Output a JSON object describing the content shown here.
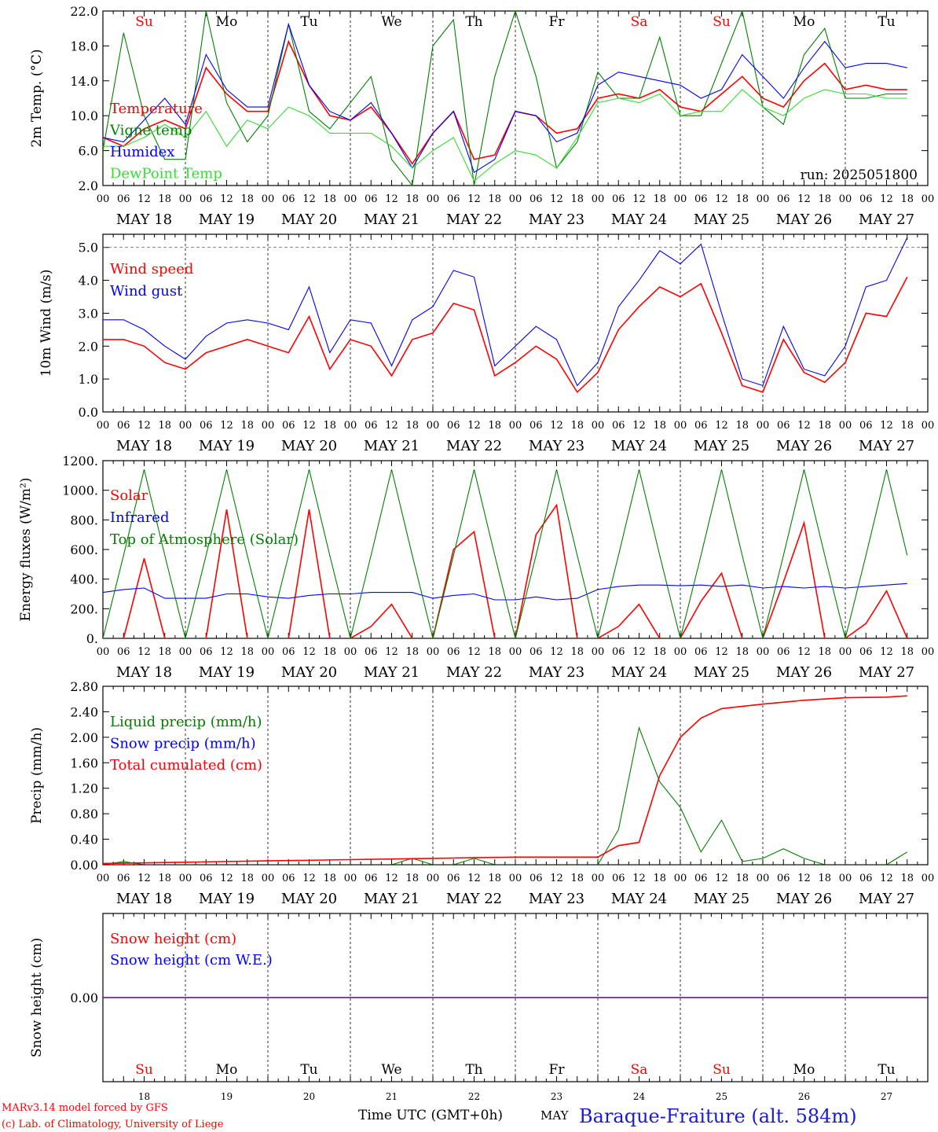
{
  "footer": {
    "model_line": "MARv3.14 model forced by GFS",
    "copyright_line": "(c) Lab. of Climatology, University of Liege",
    "time_axis_label": "Time UTC (GMT+0h)",
    "month_label": "MAY",
    "station_label": "Baraque-Fraiture (alt. 584m)"
  },
  "colors": {
    "red": "#ff0000",
    "green": "#008000",
    "blue": "#0000ff",
    "lightgreen": "#33dd33",
    "station": "#1a1ad6"
  },
  "day_names": [
    "Su",
    "Mo",
    "Tu",
    "We",
    "Th",
    "Fr",
    "Sa",
    "Su",
    "Mo",
    "Tu"
  ],
  "weekend_days": [
    0,
    6,
    7
  ],
  "day_numbers": [
    "18",
    "19",
    "20",
    "21",
    "22",
    "23",
    "24",
    "25",
    "26",
    "27"
  ],
  "date_labels": [
    "MAY 18",
    "MAY 19",
    "MAY 20",
    "MAY 21",
    "MAY 22",
    "MAY 23",
    "MAY 24",
    "MAY 25",
    "MAY 26",
    "MAY 27"
  ],
  "hour_labels": [
    "00",
    "06",
    "12",
    "18"
  ],
  "chart_data": [
    {
      "type": "line",
      "ylabel": "2m Temp. (°C)",
      "ylim": [
        2.0,
        22.0
      ],
      "yticks": [
        "2.0",
        "6.0",
        "10.0",
        "14.0",
        "18.0",
        "22.0"
      ],
      "annotation": "run: 2025051800",
      "x_unit": "hours since MAY 18 00 UTC",
      "series": [
        {
          "name": "Temperature",
          "color": "red",
          "x": [
            0,
            6,
            12,
            18,
            24,
            30,
            36,
            42,
            48,
            54,
            60,
            66,
            72,
            78,
            84,
            90,
            96,
            102,
            108,
            114,
            120,
            126,
            132,
            138,
            144,
            150,
            156,
            162,
            168,
            174,
            180,
            186,
            192,
            198,
            204,
            210,
            216,
            222,
            228,
            234
          ],
          "y": [
            7.5,
            6.5,
            8.5,
            9.5,
            8.5,
            15.5,
            12.5,
            10.5,
            10.5,
            18.5,
            13.5,
            10.0,
            9.5,
            11.0,
            8.0,
            4.5,
            8.0,
            10.5,
            5.0,
            5.5,
            10.5,
            10.0,
            8.0,
            8.5,
            12.0,
            12.5,
            12.0,
            13.0,
            11.0,
            10.5,
            12.5,
            14.5,
            12.0,
            11.0,
            14.0,
            16.0,
            13.0,
            13.5,
            13.0,
            13.0
          ]
        },
        {
          "name": "Vigne temp",
          "color": "green",
          "x": [
            0,
            6,
            12,
            18,
            24,
            30,
            36,
            42,
            48,
            54,
            60,
            66,
            72,
            78,
            84,
            90,
            96,
            102,
            108,
            114,
            120,
            126,
            132,
            138,
            144,
            150,
            156,
            162,
            168,
            174,
            180,
            186,
            192,
            198,
            204,
            210,
            216,
            222,
            228,
            234
          ],
          "y": [
            6.0,
            19.5,
            10.0,
            5.0,
            5.0,
            22.0,
            11.5,
            7.0,
            10.0,
            20.5,
            10.5,
            8.5,
            11.5,
            14.5,
            5.0,
            2.0,
            18.0,
            21.0,
            2.0,
            14.5,
            22.0,
            14.5,
            4.0,
            7.0,
            15.0,
            12.0,
            12.0,
            19.0,
            10.0,
            10.0,
            16.0,
            22.0,
            11.0,
            9.0,
            17.0,
            20.0,
            12.0,
            12.0,
            12.5,
            12.5
          ]
        },
        {
          "name": "Humidex",
          "color": "blue",
          "x": [
            0,
            6,
            12,
            18,
            24,
            30,
            36,
            42,
            48,
            54,
            60,
            66,
            72,
            78,
            84,
            90,
            96,
            102,
            108,
            114,
            120,
            126,
            132,
            138,
            144,
            150,
            156,
            162,
            168,
            174,
            180,
            186,
            192,
            198,
            204,
            210,
            216,
            222,
            228,
            234
          ],
          "y": [
            7.5,
            7.0,
            9.5,
            12.0,
            9.0,
            17.0,
            13.0,
            11.0,
            11.0,
            20.5,
            13.5,
            10.5,
            9.5,
            11.5,
            8.0,
            4.0,
            8.0,
            10.5,
            3.5,
            5.0,
            10.5,
            10.0,
            7.0,
            8.0,
            13.5,
            15.0,
            14.5,
            14.0,
            13.5,
            12.0,
            13.0,
            17.0,
            14.5,
            12.0,
            15.5,
            18.5,
            15.5,
            16.0,
            16.0,
            15.5
          ]
        },
        {
          "name": "DewPoint Temp",
          "color": "lightgreen",
          "x": [
            0,
            6,
            12,
            18,
            24,
            30,
            36,
            42,
            48,
            54,
            60,
            66,
            72,
            78,
            84,
            90,
            96,
            102,
            108,
            114,
            120,
            126,
            132,
            138,
            144,
            150,
            156,
            162,
            168,
            174,
            180,
            186,
            192,
            198,
            204,
            210,
            216,
            222,
            228,
            234
          ],
          "y": [
            6.5,
            6.5,
            7.5,
            9.0,
            7.5,
            10.5,
            6.5,
            9.5,
            8.5,
            11.0,
            10.0,
            8.0,
            8.0,
            8.0,
            6.5,
            4.0,
            6.0,
            7.5,
            2.5,
            4.5,
            6.0,
            5.5,
            4.0,
            7.5,
            11.5,
            12.0,
            11.5,
            12.5,
            10.0,
            10.5,
            10.5,
            13.0,
            11.0,
            10.0,
            12.0,
            13.0,
            12.5,
            12.5,
            12.0,
            12.0
          ]
        }
      ]
    },
    {
      "type": "line",
      "ylabel": "10m Wind (m/s)",
      "ylim": [
        0.0,
        5.4
      ],
      "yticks": [
        "0.0",
        "1.0",
        "2.0",
        "3.0",
        "4.0",
        "5.0"
      ],
      "reference_line": 5.0,
      "x_unit": "hours since MAY 18 00 UTC",
      "series": [
        {
          "name": "Wind speed",
          "color": "red",
          "x": [
            0,
            6,
            12,
            18,
            24,
            30,
            36,
            42,
            48,
            54,
            60,
            66,
            72,
            78,
            84,
            90,
            96,
            102,
            108,
            114,
            120,
            126,
            132,
            138,
            144,
            150,
            156,
            162,
            168,
            174,
            180,
            186,
            192,
            198,
            204,
            210,
            216,
            222,
            228,
            234
          ],
          "y": [
            2.2,
            2.2,
            2.0,
            1.5,
            1.3,
            1.8,
            2.0,
            2.2,
            2.0,
            1.8,
            2.9,
            1.3,
            2.2,
            2.0,
            1.1,
            2.2,
            2.4,
            3.3,
            3.1,
            1.1,
            1.5,
            2.0,
            1.6,
            0.6,
            1.2,
            2.5,
            3.2,
            3.8,
            3.5,
            3.9,
            2.4,
            0.8,
            0.6,
            2.2,
            1.2,
            0.9,
            1.5,
            3.0,
            2.9,
            4.1
          ]
        },
        {
          "name": "Wind gust",
          "color": "blue",
          "x": [
            0,
            6,
            12,
            18,
            24,
            30,
            36,
            42,
            48,
            54,
            60,
            66,
            72,
            78,
            84,
            90,
            96,
            102,
            108,
            114,
            120,
            126,
            132,
            138,
            144,
            150,
            156,
            162,
            168,
            174,
            180,
            186,
            192,
            198,
            204,
            210,
            216,
            222,
            228,
            234
          ],
          "y": [
            2.8,
            2.8,
            2.5,
            2.0,
            1.6,
            2.3,
            2.7,
            2.8,
            2.7,
            2.5,
            3.8,
            1.8,
            2.8,
            2.7,
            1.4,
            2.8,
            3.2,
            4.3,
            4.1,
            1.4,
            2.0,
            2.6,
            2.2,
            0.8,
            1.5,
            3.2,
            4.0,
            4.9,
            4.5,
            5.1,
            3.0,
            1.0,
            0.8,
            2.6,
            1.3,
            1.1,
            2.0,
            3.8,
            4.0,
            5.3
          ]
        }
      ]
    },
    {
      "type": "line",
      "ylabel": "Energy fluxes (W/m²)",
      "ylim": [
        0,
        1200
      ],
      "yticks": [
        "0.",
        "200.",
        "400.",
        "600.",
        "800.",
        "1000.",
        "1200."
      ],
      "x_unit": "hours since MAY 18 00 UTC",
      "series": [
        {
          "name": "Solar",
          "color": "red",
          "x": [
            0,
            6,
            12,
            18,
            24,
            30,
            36,
            42,
            48,
            54,
            60,
            66,
            72,
            78,
            84,
            90,
            96,
            102,
            108,
            114,
            120,
            126,
            132,
            138,
            144,
            150,
            156,
            162,
            168,
            174,
            180,
            186,
            192,
            198,
            204,
            210,
            216,
            222,
            228,
            234
          ],
          "y": [
            0,
            0,
            540,
            0,
            0,
            0,
            870,
            0,
            0,
            0,
            870,
            0,
            0,
            80,
            230,
            0,
            0,
            600,
            720,
            0,
            0,
            700,
            900,
            0,
            0,
            80,
            230,
            0,
            0,
            250,
            440,
            0,
            0,
            380,
            780,
            0,
            0,
            100,
            320,
            0
          ]
        },
        {
          "name": "Infrared",
          "color": "blue",
          "x": [
            0,
            6,
            12,
            18,
            24,
            30,
            36,
            42,
            48,
            54,
            60,
            66,
            72,
            78,
            84,
            90,
            96,
            102,
            108,
            114,
            120,
            126,
            132,
            138,
            144,
            150,
            156,
            162,
            168,
            174,
            180,
            186,
            192,
            198,
            204,
            210,
            216,
            222,
            228,
            234
          ],
          "y": [
            310,
            330,
            340,
            270,
            270,
            270,
            300,
            300,
            280,
            270,
            290,
            300,
            300,
            310,
            310,
            310,
            270,
            290,
            300,
            260,
            260,
            280,
            260,
            270,
            330,
            350,
            360,
            360,
            355,
            360,
            350,
            360,
            340,
            350,
            340,
            350,
            340,
            350,
            360,
            370
          ]
        },
        {
          "name": "Top of Atmosphere (Solar)",
          "color": "green",
          "x": [
            0,
            6,
            12,
            18,
            24,
            30,
            36,
            42,
            48,
            54,
            60,
            66,
            72,
            78,
            84,
            90,
            96,
            102,
            108,
            114,
            120,
            126,
            132,
            138,
            144,
            150,
            156,
            162,
            168,
            174,
            180,
            186,
            192,
            198,
            204,
            210,
            216,
            222,
            228,
            234
          ],
          "y": [
            0,
            560,
            1140,
            560,
            0,
            560,
            1140,
            560,
            0,
            560,
            1140,
            560,
            0,
            560,
            1140,
            560,
            0,
            560,
            1140,
            560,
            0,
            560,
            1140,
            560,
            0,
            560,
            1140,
            560,
            0,
            560,
            1140,
            560,
            0,
            560,
            1140,
            560,
            0,
            560,
            1140,
            560
          ]
        }
      ]
    },
    {
      "type": "line",
      "ylabel": "Precip (mm/h)",
      "ylim": [
        0.0,
        2.8
      ],
      "yticks": [
        "0.00",
        "0.40",
        "0.80",
        "1.20",
        "1.60",
        "2.00",
        "2.40",
        "2.80"
      ],
      "x_unit": "hours since MAY 18 00 UTC",
      "series": [
        {
          "name": "Liquid precip (mm/h)",
          "color": "green",
          "x": [
            0,
            6,
            12,
            18,
            24,
            30,
            36,
            42,
            48,
            54,
            60,
            66,
            72,
            78,
            84,
            90,
            96,
            102,
            108,
            114,
            120,
            126,
            132,
            138,
            144,
            150,
            156,
            162,
            168,
            174,
            180,
            186,
            192,
            198,
            204,
            210,
            216,
            222,
            228,
            234
          ],
          "y": [
            0,
            0.05,
            0,
            0,
            0,
            0,
            0,
            0,
            0,
            0,
            0,
            0,
            0,
            0,
            0,
            0.1,
            0,
            0,
            0.1,
            0,
            0,
            0,
            0,
            0,
            0,
            0.55,
            2.15,
            1.3,
            0.9,
            0.2,
            0.7,
            0.05,
            0.1,
            0.25,
            0.1,
            0,
            0,
            0,
            0,
            0.2
          ]
        },
        {
          "name": "Snow precip (mm/h)",
          "color": "blue",
          "x": [
            0,
            234
          ],
          "y": [
            0,
            0
          ]
        },
        {
          "name": "Total cumulated (cm)",
          "color": "red",
          "x": [
            0,
            24,
            48,
            72,
            96,
            120,
            138,
            144,
            150,
            156,
            162,
            168,
            174,
            180,
            192,
            204,
            216,
            228,
            234
          ],
          "y": [
            0.02,
            0.04,
            0.06,
            0.08,
            0.1,
            0.12,
            0.12,
            0.12,
            0.3,
            0.35,
            1.4,
            2.0,
            2.3,
            2.45,
            2.52,
            2.58,
            2.62,
            2.63,
            2.65
          ]
        }
      ]
    },
    {
      "type": "line",
      "ylabel": "Snow height (cm)",
      "ylim": [
        -1.0,
        1.0
      ],
      "yticks": [
        "0.00"
      ],
      "x_unit": "hours since MAY 18 00 UTC",
      "series": [
        {
          "name": "Snow height (cm)",
          "color": "red",
          "x": [
            0,
            240
          ],
          "y": [
            0,
            0
          ]
        },
        {
          "name": "Snow height (cm W.E.)",
          "color": "blue",
          "x": [
            0,
            240
          ],
          "y": [
            0,
            0
          ]
        }
      ]
    }
  ]
}
